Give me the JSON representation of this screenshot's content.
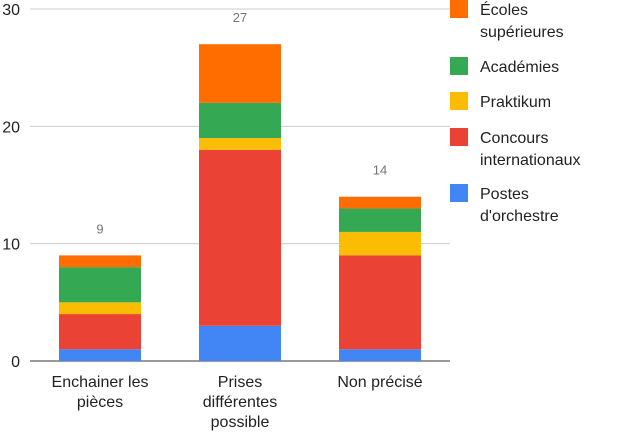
{
  "chart_data": {
    "type": "bar",
    "stacked": true,
    "categories": [
      "Enchainer les pièces",
      "Prises différentes possible",
      "Non précisé"
    ],
    "category_lines": [
      [
        "Enchainer les",
        "pièces"
      ],
      [
        "Prises",
        "différentes",
        "possible"
      ],
      [
        "Non précisé"
      ]
    ],
    "series": [
      {
        "name": "Postes d'orchestre",
        "label_lines": [
          "Postes",
          "d'orchestre"
        ],
        "color": "#4285f4",
        "values": [
          1,
          3,
          1
        ]
      },
      {
        "name": "Concours internationaux",
        "label_lines": [
          "Concours",
          "internationaux"
        ],
        "color": "#ea4335",
        "values": [
          3,
          15,
          8
        ]
      },
      {
        "name": "Praktikum",
        "label_lines": [
          "Praktikum"
        ],
        "color": "#fbbc04",
        "values": [
          1,
          1,
          2
        ]
      },
      {
        "name": "Académies",
        "label_lines": [
          "Académies"
        ],
        "color": "#34a853",
        "values": [
          3,
          3,
          2
        ]
      },
      {
        "name": "Écoles supérieures",
        "label_lines": [
          "Écoles",
          "supérieures"
        ],
        "color": "#ff6d01",
        "values": [
          1,
          5,
          1
        ]
      }
    ],
    "totals": [
      "9",
      "27",
      "14"
    ],
    "ylim": [
      0,
      30
    ],
    "yticks": [
      "0",
      "10",
      "20",
      "30"
    ],
    "ytick_values": [
      0,
      10,
      20,
      30
    ],
    "grid": true,
    "legend_position": "right",
    "title": "",
    "xlabel": "",
    "ylabel": ""
  }
}
